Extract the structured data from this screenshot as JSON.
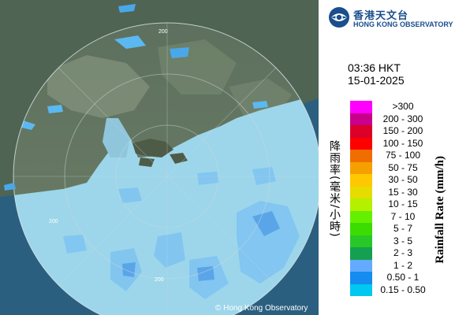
{
  "logo": {
    "zh": "香港天文台",
    "en": "HONG KONG OBSERVATORY",
    "icon": "hko-logo-icon"
  },
  "time": {
    "hkt": "03:36 HKT",
    "date": "15-01-2025"
  },
  "legend": {
    "title_zh": "降雨率(毫米/小時)",
    "title_en": "Rainfall Rate (mm/h)",
    "items": [
      {
        "label": ">300",
        "color": "#ff00ff"
      },
      {
        "label": "200 - 300",
        "color": "#c8008c"
      },
      {
        "label": "150 - 200",
        "color": "#dc0028"
      },
      {
        "label": "100 - 150",
        "color": "#ff0000"
      },
      {
        "label": "75 - 100",
        "color": "#f06e00"
      },
      {
        "label": "50 - 75",
        "color": "#f5a000"
      },
      {
        "label": "30 - 50",
        "color": "#ffc800"
      },
      {
        "label": "15 - 30",
        "color": "#e6dc00"
      },
      {
        "label": "10 - 15",
        "color": "#b4f000"
      },
      {
        "label": "7 - 10",
        "color": "#64f000"
      },
      {
        "label": "5 - 7",
        "color": "#3cdc00"
      },
      {
        "label": "3 - 5",
        "color": "#28c828"
      },
      {
        "label": "2 - 3",
        "color": "#14a050"
      },
      {
        "label": "1 - 2",
        "color": "#64aaff"
      },
      {
        "label": "0.50 - 1",
        "color": "#148cf0"
      },
      {
        "label": "0.15 - 0.50",
        "color": "#00c8f0"
      }
    ]
  },
  "map": {
    "range_labels": [
      "200",
      "200",
      "200"
    ],
    "copyright": "© Hong Kong Observatory"
  }
}
